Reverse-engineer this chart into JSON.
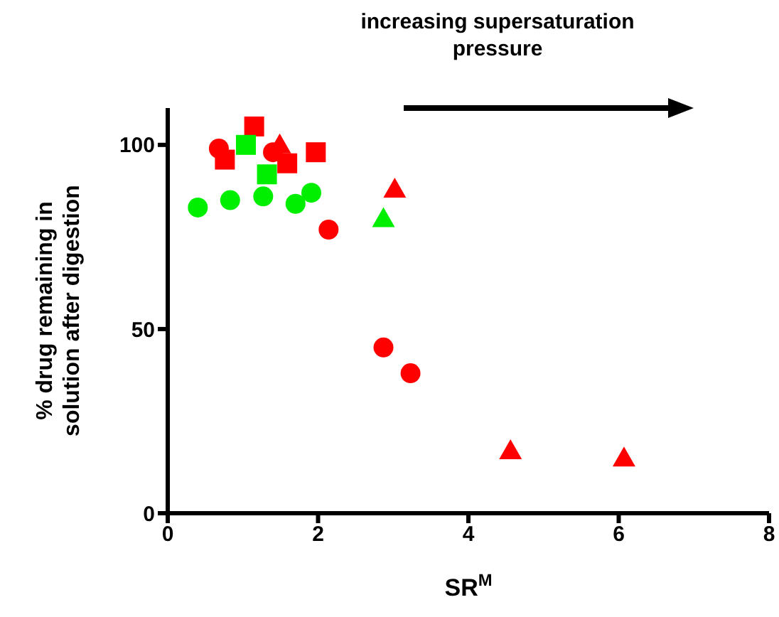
{
  "chart_data": {
    "type": "scatter",
    "xlabel": "SR$^{M}$",
    "ylabel": "% drug remaining in solution after digestion",
    "annotations": [
      "increasing supersaturation pressure"
    ],
    "xlim": [
      0,
      8
    ],
    "xticks": [
      0,
      2,
      4,
      6,
      8
    ],
    "ylim": [
      0,
      110
    ],
    "yticks": [
      0,
      50,
      100
    ],
    "grid": false,
    "legend": false,
    "series": [
      {
        "color": "#ff0000",
        "marker": "circle",
        "x": [
          0.68,
          1.4,
          2.14,
          2.87,
          3.23
        ],
        "values": [
          99,
          98,
          77,
          45,
          38
        ]
      },
      {
        "color": "#ff0000",
        "marker": "square",
        "x": [
          1.15,
          0.76,
          1.59,
          1.97
        ],
        "values": [
          105,
          96,
          95,
          98
        ]
      },
      {
        "color": "#ff0000",
        "marker": "triangle",
        "x": [
          1.49,
          3.02,
          4.56,
          6.07
        ],
        "values": [
          100,
          88,
          17,
          15
        ]
      },
      {
        "color": "#00ee00",
        "marker": "circle",
        "x": [
          0.4,
          0.83,
          1.27,
          1.7,
          1.91
        ],
        "values": [
          83,
          85,
          86,
          84,
          87
        ]
      },
      {
        "color": "#00ee00",
        "marker": "square",
        "x": [
          1.04,
          1.32
        ],
        "values": [
          100,
          92
        ]
      },
      {
        "color": "#00ee00",
        "marker": "triangle",
        "x": [
          2.87
        ],
        "values": [
          80
        ]
      }
    ]
  }
}
